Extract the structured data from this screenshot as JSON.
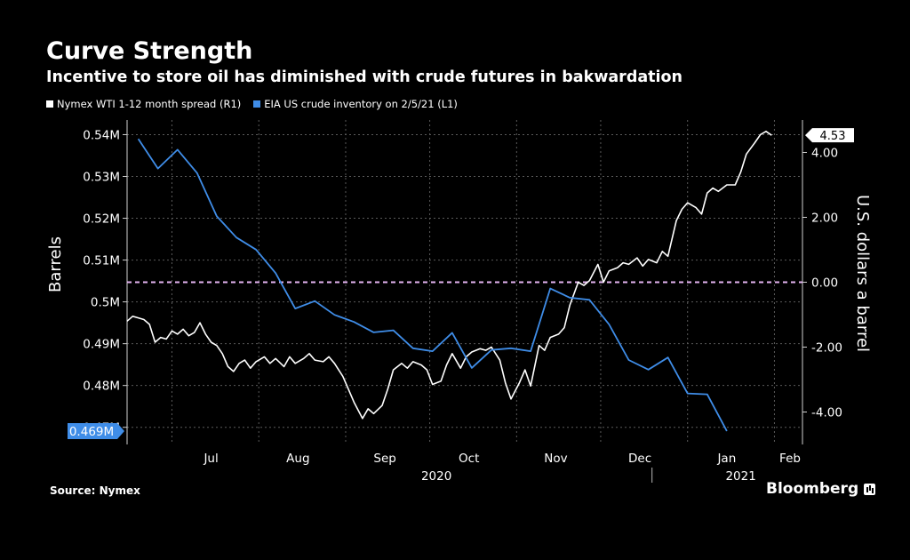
{
  "title": "Curve Strength",
  "subtitle": "Incentive to store oil has diminished with crude futures in bakwardation",
  "source": "Source: Nymex",
  "brand": "Bloomberg",
  "chart_data": {
    "type": "line",
    "left_axis": {
      "label": "Barrels",
      "range": [
        0.4659,
        0.5435
      ],
      "ticks": [
        {
          "value": 0.47,
          "label": "0.47M"
        },
        {
          "value": 0.48,
          "label": "0.48M"
        },
        {
          "value": 0.49,
          "label": "0.49M"
        },
        {
          "value": 0.5,
          "label": "0.5M"
        },
        {
          "value": 0.51,
          "label": "0.51M"
        },
        {
          "value": 0.52,
          "label": "0.52M"
        },
        {
          "value": 0.53,
          "label": "0.53M"
        },
        {
          "value": 0.54,
          "label": "0.54M"
        }
      ]
    },
    "right_axis": {
      "label": "U.S. dollars a barrel",
      "range": [
        -5.0,
        5.0
      ],
      "ticks": [
        {
          "value": 4,
          "label": "4.00"
        },
        {
          "value": 2,
          "label": "2.00"
        },
        {
          "value": 0,
          "label": "0.00"
        },
        {
          "value": -2,
          "label": "-2.00"
        },
        {
          "value": -4,
          "label": "-4.00"
        }
      ]
    },
    "x_range": [
      "2020-06-15",
      "2021-02-11"
    ],
    "x_ticks": [
      {
        "date": "2020-07-01",
        "label": "Jul"
      },
      {
        "date": "2020-08-01",
        "label": "Aug"
      },
      {
        "date": "2020-09-01",
        "label": "Sep"
      },
      {
        "date": "2020-10-01",
        "label": "Oct"
      },
      {
        "date": "2020-11-01",
        "label": "Nov"
      },
      {
        "date": "2020-12-01",
        "label": "Dec"
      },
      {
        "date": "2021-01-01",
        "label": "Jan"
      },
      {
        "date": "2021-02-01",
        "label": "Feb"
      }
    ],
    "year_labels": [
      {
        "label": "2020"
      },
      {
        "label": "2021"
      }
    ],
    "grid": true,
    "reference_line": {
      "axis": "right",
      "value": 0,
      "color": "#e3b3f0",
      "style": "dashed"
    },
    "series": [
      {
        "name": "Nymex WTI 1-12 month spread (R1)",
        "axis": "right",
        "color": "#ffffff",
        "last_value_label": "4.53",
        "points": [
          [
            "2020-06-15",
            -1.2
          ],
          [
            "2020-06-17",
            -1.05
          ],
          [
            "2020-06-19",
            -1.1
          ],
          [
            "2020-06-21",
            -1.15
          ],
          [
            "2020-06-23",
            -1.3
          ],
          [
            "2020-06-25",
            -1.85
          ],
          [
            "2020-06-27",
            -1.7
          ],
          [
            "2020-06-29",
            -1.75
          ],
          [
            "2020-07-01",
            -1.5
          ],
          [
            "2020-07-03",
            -1.6
          ],
          [
            "2020-07-05",
            -1.45
          ],
          [
            "2020-07-07",
            -1.65
          ],
          [
            "2020-07-09",
            -1.55
          ],
          [
            "2020-07-11",
            -1.25
          ],
          [
            "2020-07-13",
            -1.6
          ],
          [
            "2020-07-15",
            -1.85
          ],
          [
            "2020-07-17",
            -1.95
          ],
          [
            "2020-07-19",
            -2.2
          ],
          [
            "2020-07-21",
            -2.6
          ],
          [
            "2020-07-23",
            -2.75
          ],
          [
            "2020-07-25",
            -2.5
          ],
          [
            "2020-07-27",
            -2.4
          ],
          [
            "2020-07-29",
            -2.65
          ],
          [
            "2020-07-31",
            -2.45
          ],
          [
            "2020-08-03",
            -2.3
          ],
          [
            "2020-08-05",
            -2.5
          ],
          [
            "2020-08-07",
            -2.35
          ],
          [
            "2020-08-10",
            -2.6
          ],
          [
            "2020-08-12",
            -2.3
          ],
          [
            "2020-08-14",
            -2.5
          ],
          [
            "2020-08-17",
            -2.35
          ],
          [
            "2020-08-19",
            -2.2
          ],
          [
            "2020-08-21",
            -2.4
          ],
          [
            "2020-08-24",
            -2.45
          ],
          [
            "2020-08-26",
            -2.3
          ],
          [
            "2020-08-28",
            -2.5
          ],
          [
            "2020-08-31",
            -2.9
          ],
          [
            "2020-09-02",
            -3.3
          ],
          [
            "2020-09-04",
            -3.7
          ],
          [
            "2020-09-07",
            -4.2
          ],
          [
            "2020-09-09",
            -3.9
          ],
          [
            "2020-09-11",
            -4.05
          ],
          [
            "2020-09-14",
            -3.8
          ],
          [
            "2020-09-16",
            -3.3
          ],
          [
            "2020-09-18",
            -2.7
          ],
          [
            "2020-09-21",
            -2.5
          ],
          [
            "2020-09-23",
            -2.65
          ],
          [
            "2020-09-25",
            -2.45
          ],
          [
            "2020-09-28",
            -2.55
          ],
          [
            "2020-09-30",
            -2.7
          ],
          [
            "2020-10-02",
            -3.15
          ],
          [
            "2020-10-05",
            -3.05
          ],
          [
            "2020-10-07",
            -2.55
          ],
          [
            "2020-10-09",
            -2.2
          ],
          [
            "2020-10-12",
            -2.65
          ],
          [
            "2020-10-14",
            -2.3
          ],
          [
            "2020-10-16",
            -2.15
          ],
          [
            "2020-10-19",
            -2.05
          ],
          [
            "2020-10-21",
            -2.1
          ],
          [
            "2020-10-23",
            -2.0
          ],
          [
            "2020-10-26",
            -2.4
          ],
          [
            "2020-10-28",
            -3.1
          ],
          [
            "2020-10-30",
            -3.6
          ],
          [
            "2020-11-02",
            -3.1
          ],
          [
            "2020-11-04",
            -2.7
          ],
          [
            "2020-11-06",
            -3.2
          ],
          [
            "2020-11-09",
            -1.95
          ],
          [
            "2020-11-11",
            -2.1
          ],
          [
            "2020-11-13",
            -1.7
          ],
          [
            "2020-11-16",
            -1.6
          ],
          [
            "2020-11-18",
            -1.4
          ],
          [
            "2020-11-20",
            -0.7
          ],
          [
            "2020-11-23",
            0.0
          ],
          [
            "2020-11-25",
            -0.1
          ],
          [
            "2020-11-27",
            0.05
          ],
          [
            "2020-11-30",
            0.55
          ],
          [
            "2020-12-02",
            0.0
          ],
          [
            "2020-12-04",
            0.35
          ],
          [
            "2020-12-07",
            0.45
          ],
          [
            "2020-12-09",
            0.6
          ],
          [
            "2020-12-11",
            0.55
          ],
          [
            "2020-12-14",
            0.75
          ],
          [
            "2020-12-16",
            0.5
          ],
          [
            "2020-12-18",
            0.7
          ],
          [
            "2020-12-21",
            0.6
          ],
          [
            "2020-12-23",
            0.95
          ],
          [
            "2020-12-25",
            0.8
          ],
          [
            "2020-12-28",
            1.9
          ],
          [
            "2020-12-30",
            2.25
          ],
          [
            "2021-01-01",
            2.45
          ],
          [
            "2021-01-04",
            2.3
          ],
          [
            "2021-01-06",
            2.1
          ],
          [
            "2021-01-08",
            2.75
          ],
          [
            "2021-01-10",
            2.9
          ],
          [
            "2021-01-12",
            2.8
          ],
          [
            "2021-01-15",
            3.0
          ],
          [
            "2021-01-18",
            3.0
          ],
          [
            "2021-01-20",
            3.4
          ],
          [
            "2021-01-22",
            3.95
          ],
          [
            "2021-01-25",
            4.3
          ],
          [
            "2021-01-27",
            4.55
          ],
          [
            "2021-01-29",
            4.65
          ],
          [
            "2021-01-31",
            4.53
          ]
        ]
      },
      {
        "name": "EIA US crude inventory on 2/5/21 (L1)",
        "axis": "left",
        "color": "#3f8de8",
        "last_value_label": "0.469M",
        "points": [
          [
            "2020-06-19",
            0.539
          ],
          [
            "2020-06-26",
            0.5319
          ],
          [
            "2020-07-03",
            0.5364
          ],
          [
            "2020-07-10",
            0.5308
          ],
          [
            "2020-07-17",
            0.5205
          ],
          [
            "2020-07-24",
            0.5154
          ],
          [
            "2020-07-31",
            0.5125
          ],
          [
            "2020-08-07",
            0.5069
          ],
          [
            "2020-08-14",
            0.4984
          ],
          [
            "2020-08-21",
            0.5002
          ],
          [
            "2020-08-28",
            0.4969
          ],
          [
            "2020-09-04",
            0.4952
          ],
          [
            "2020-09-11",
            0.4927
          ],
          [
            "2020-09-18",
            0.4932
          ],
          [
            "2020-09-25",
            0.4889
          ],
          [
            "2020-10-02",
            0.4882
          ],
          [
            "2020-10-09",
            0.4926
          ],
          [
            "2020-10-16",
            0.4842
          ],
          [
            "2020-10-23",
            0.4885
          ],
          [
            "2020-10-30",
            0.4889
          ],
          [
            "2020-11-06",
            0.4882
          ],
          [
            "2020-11-13",
            0.5032
          ],
          [
            "2020-11-20",
            0.501
          ],
          [
            "2020-11-27",
            0.5005
          ],
          [
            "2020-12-04",
            0.4946
          ],
          [
            "2020-12-11",
            0.4861
          ],
          [
            "2020-12-18",
            0.4838
          ],
          [
            "2020-12-25",
            0.4867
          ],
          [
            "2021-01-01",
            0.4781
          ],
          [
            "2021-01-08",
            0.4779
          ],
          [
            "2021-01-15",
            0.4691
          ]
        ]
      }
    ]
  }
}
